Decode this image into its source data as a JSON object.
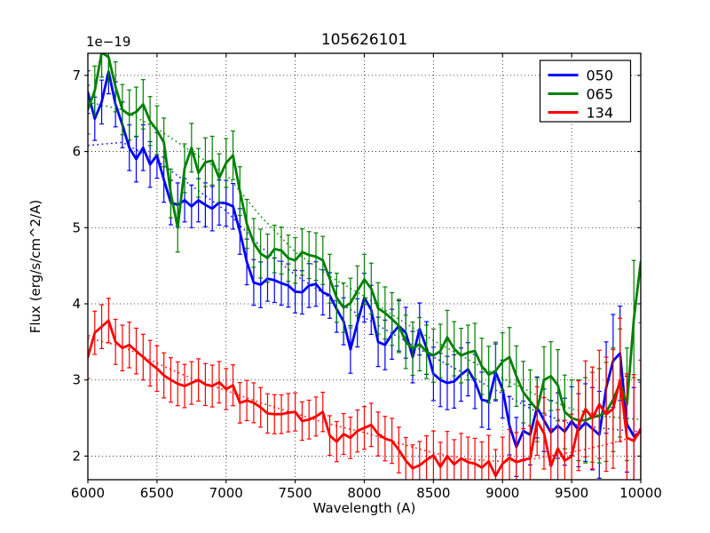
{
  "chart_data": {
    "type": "line",
    "title": "105626101",
    "offset_text": "1e−19",
    "xlabel": "Wavelength (A)",
    "ylabel": "Flux (erg/s/cm^2/A)",
    "xlim": [
      6000,
      10000
    ],
    "ylim": [
      1.69,
      7.29
    ],
    "xticks": [
      6000,
      6500,
      7000,
      7500,
      8000,
      8500,
      9000,
      9500,
      10000
    ],
    "yticks": [
      2,
      3,
      4,
      5,
      6,
      7
    ],
    "grid": true,
    "grid_style": "dotted",
    "background": "#ffffff",
    "legend_position": "upper right",
    "x_start": 6000,
    "x_step": 50,
    "series": [
      {
        "name": "050",
        "color": "#0000ff",
        "values": [
          6.78,
          6.43,
          6.65,
          7.05,
          6.62,
          6.35,
          6.05,
          5.9,
          6.05,
          5.83,
          5.95,
          5.63,
          5.33,
          5.3,
          5.36,
          5.28,
          5.36,
          5.3,
          5.25,
          5.33,
          5.32,
          5.28,
          4.95,
          4.55,
          4.28,
          4.25,
          4.33,
          4.31,
          4.27,
          4.24,
          4.16,
          4.15,
          4.24,
          4.26,
          4.15,
          4.11,
          3.93,
          3.77,
          3.4,
          3.75,
          4.08,
          3.92,
          3.5,
          3.46,
          3.6,
          3.71,
          3.62,
          3.3,
          3.67,
          3.42,
          3.08,
          3.0,
          2.96,
          2.98,
          3.07,
          3.14,
          2.98,
          2.74,
          2.72,
          3.1,
          2.88,
          2.4,
          2.12,
          2.33,
          2.28,
          2.64,
          2.47,
          2.31,
          2.4,
          2.32,
          2.46,
          2.34,
          2.44,
          2.36,
          2.28,
          2.9,
          3.25,
          3.35,
          2.42,
          2.26,
          2.32
        ],
        "err": [
          0.28,
          0.3,
          0.3,
          0.28,
          0.3,
          0.3,
          0.28,
          0.3,
          0.32,
          0.33,
          0.35,
          0.35,
          0.38,
          0.4,
          0.45,
          0.6,
          0.65
        ]
      },
      {
        "name": "065",
        "color": "#008000",
        "values": [
          6.55,
          6.8,
          7.3,
          7.24,
          6.85,
          6.55,
          6.48,
          6.52,
          6.62,
          6.4,
          6.28,
          6.12,
          5.45,
          5.0,
          5.78,
          6.05,
          5.72,
          5.86,
          5.88,
          5.65,
          5.85,
          5.95,
          5.48,
          5.05,
          4.8,
          4.66,
          4.6,
          4.72,
          4.7,
          4.6,
          4.57,
          4.68,
          4.64,
          4.62,
          4.57,
          4.33,
          4.08,
          3.95,
          4.01,
          4.17,
          4.32,
          4.2,
          3.94,
          3.88,
          3.8,
          3.71,
          3.5,
          3.41,
          3.47,
          3.37,
          3.32,
          3.38,
          3.56,
          3.41,
          3.32,
          3.36,
          3.38,
          3.18,
          3.07,
          3.12,
          3.24,
          3.3,
          3.05,
          2.84,
          2.72,
          2.61,
          3.0,
          3.05,
          2.93,
          2.58,
          2.5,
          2.47,
          2.47,
          2.51,
          2.53,
          2.58,
          2.74,
          2.96,
          2.68,
          3.8,
          4.55
        ],
        "err": [
          0.32,
          0.33,
          0.32,
          0.32,
          0.32,
          0.32,
          0.3,
          0.32,
          0.33,
          0.35,
          0.35,
          0.36,
          0.38,
          0.42,
          0.5,
          0.65,
          0.8
        ]
      },
      {
        "name": "134",
        "color": "#ff0000",
        "values": [
          3.3,
          3.62,
          3.7,
          3.78,
          3.5,
          3.42,
          3.46,
          3.38,
          3.3,
          3.22,
          3.15,
          3.06,
          3.0,
          2.95,
          2.92,
          2.96,
          3.0,
          2.94,
          2.92,
          2.97,
          2.88,
          2.93,
          2.7,
          2.73,
          2.7,
          2.64,
          2.56,
          2.55,
          2.55,
          2.57,
          2.58,
          2.46,
          2.48,
          2.52,
          2.58,
          2.27,
          2.19,
          2.29,
          2.24,
          2.33,
          2.37,
          2.41,
          2.29,
          2.23,
          2.2,
          2.08,
          1.94,
          1.84,
          1.88,
          1.95,
          2.01,
          1.86,
          2.0,
          1.89,
          1.97,
          1.92,
          1.9,
          1.85,
          1.93,
          1.74,
          1.9,
          1.98,
          1.92,
          1.95,
          1.97,
          2.46,
          2.3,
          1.87,
          2.1,
          1.94,
          2.0,
          2.4,
          2.62,
          2.5,
          2.68,
          2.55,
          2.62,
          3.0,
          2.24,
          2.2,
          2.36
        ],
        "err": [
          0.28,
          0.3,
          0.3,
          0.28,
          0.27,
          0.26,
          0.25,
          0.26,
          0.28,
          0.3,
          0.32,
          0.33,
          0.35,
          0.45,
          0.55,
          0.75,
          0.9
        ]
      }
    ],
    "model_x": [
      6000,
      6250,
      6500,
      6750,
      7000,
      7250,
      7500,
      7750,
      8000,
      8250,
      8500,
      8750,
      9000,
      9250,
      9500,
      9750,
      10000
    ],
    "model_series": [
      {
        "name": "050-model",
        "color": "#0000ff",
        "values": [
          6.08,
          6.12,
          5.88,
          5.55,
          5.22,
          4.75,
          4.38,
          4.08,
          3.82,
          3.56,
          3.3,
          3.06,
          2.82,
          2.58,
          2.42,
          2.36,
          2.32
        ]
      },
      {
        "name": "065-model",
        "color": "#008000",
        "values": [
          6.65,
          6.55,
          6.3,
          6.0,
          5.7,
          5.15,
          4.68,
          4.36,
          4.1,
          3.8,
          3.52,
          3.27,
          3.02,
          2.8,
          2.62,
          2.52,
          2.48
        ]
      },
      {
        "name": "134-model",
        "color": "#ff0000",
        "values": [
          3.55,
          3.44,
          3.22,
          3.02,
          2.86,
          2.7,
          2.56,
          2.42,
          2.31,
          2.17,
          2.04,
          1.96,
          1.93,
          1.97,
          2.05,
          2.15,
          2.28
        ]
      }
    ]
  }
}
